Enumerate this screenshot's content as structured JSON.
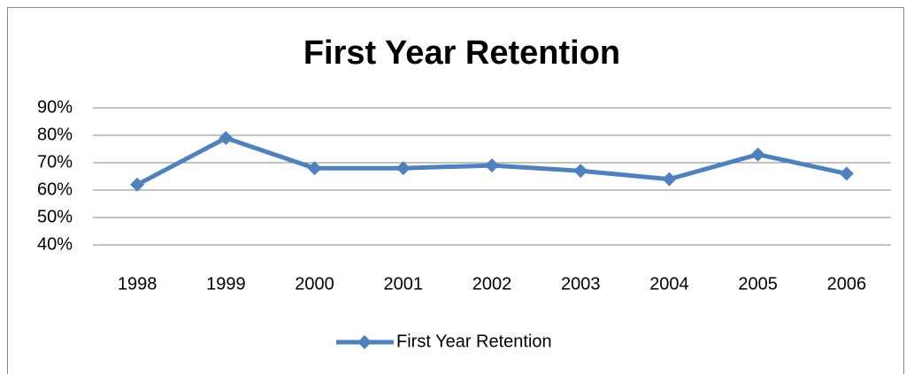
{
  "chart_data": {
    "type": "line",
    "title": "First Year Retention",
    "categories": [
      "1998",
      "1999",
      "2000",
      "2001",
      "2002",
      "2003",
      "2004",
      "2005",
      "2006"
    ],
    "series": [
      {
        "name": "First Year Retention",
        "color": "#4f81bd",
        "values": [
          62,
          79,
          68,
          68,
          69,
          67,
          64,
          73,
          66
        ]
      }
    ],
    "ylim": [
      40,
      90
    ],
    "yticks": [
      {
        "value": 40,
        "label": "40%"
      },
      {
        "value": 50,
        "label": "50%"
      },
      {
        "value": 60,
        "label": "60%"
      },
      {
        "value": 70,
        "label": "70%"
      },
      {
        "value": 80,
        "label": "80%"
      },
      {
        "value": 90,
        "label": "90%"
      }
    ],
    "grid": true,
    "legend": "bottom"
  }
}
